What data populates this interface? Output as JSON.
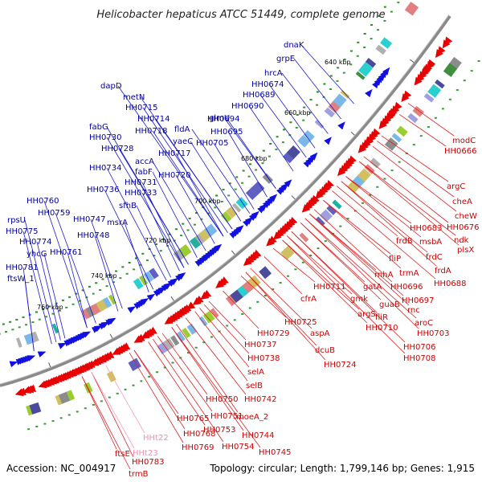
{
  "title": "Helicobacter hepaticus ATCC 51449, complete genome",
  "footer": {
    "accession": "Accession: NC_004917",
    "summary": "Topology: circular; Length: 1,799,146 bp; Genes: 1,915"
  },
  "scale_ticks": [
    "640 kbp",
    "660 kbp",
    "680 kbp",
    "700 kbp",
    "720 kbp",
    "740 kbp",
    "760 kbp"
  ],
  "colors": {
    "blue_label": "#00009e",
    "red_label": "#cc0000",
    "pink_label": "#f090b0",
    "backbone": "#7a7a7a"
  },
  "genes_blue": [
    "dnaK",
    "grpE",
    "hrcA",
    "HH0674",
    "HH0689",
    "HH0690",
    "glmU",
    "HH0694",
    "HH0695",
    "HH0705",
    "dapD",
    "metN",
    "HH0715",
    "HH0714",
    "HH0718",
    "fldA",
    "yaeC",
    "HH0717",
    "fabG",
    "HH0730",
    "HH0728",
    "accA",
    "fabF",
    "HH0731",
    "HH0733",
    "HH0734",
    "HH0720",
    "HH0736",
    "sfhB",
    "HH0760",
    "HH0759",
    "HH0747",
    "msrA",
    "rpsU",
    "HH0775",
    "HH0748",
    "HH0774",
    "yhcG",
    "HH0761",
    "HH0781",
    "ftsW_1"
  ],
  "genes_red": [
    "modC",
    "HH0666",
    "argC",
    "cheA",
    "cheW",
    "HH0683",
    "HH0676",
    "ndk",
    "frdB",
    "msbA",
    "plsX",
    "frdC",
    "frdA",
    "fliP",
    "HH0688",
    "rnhA",
    "trmA",
    "HH0711",
    "gatA",
    "HH0696",
    "HH0697",
    "cfrA",
    "gmk",
    "guaB",
    "rnc",
    "argS",
    "fliR",
    "aroC",
    "HH0710",
    "HH0703",
    "HH0725",
    "aspA",
    "HH0729",
    "HH0737",
    "HH0706",
    "HH0708",
    "dcuB",
    "HH0724",
    "HH0738",
    "selA",
    "HH0750",
    "selB",
    "HH0742",
    "HH0765",
    "HH0751",
    "moeA_2",
    "HH0753",
    "HH0744",
    "HH0768",
    "HH0769",
    "HH0754",
    "HH0745",
    "ftsE",
    "HH0783",
    "trmB"
  ],
  "genes_pink": [
    "HHt22",
    "HHt23"
  ]
}
